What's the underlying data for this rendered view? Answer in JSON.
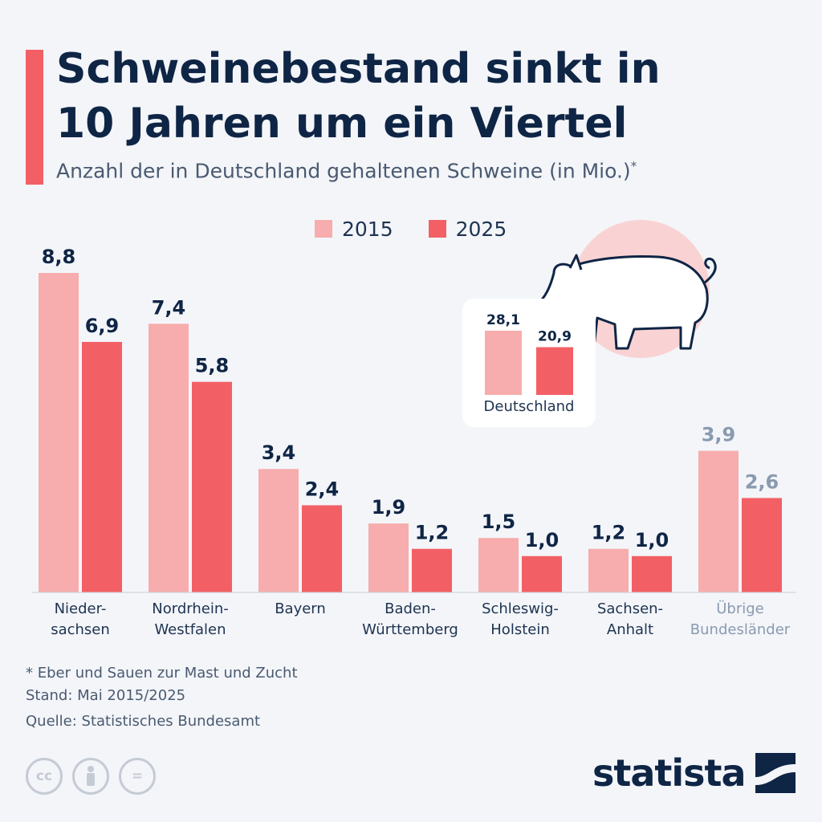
{
  "header": {
    "title_line1": "Schweinebestand sinkt in",
    "title_line2": "10 Jahren um ein Viertel",
    "subtitle": "Anzahl der in Deutschland gehaltenen Schweine (in Mio.)",
    "subtitle_marker": "*"
  },
  "colors": {
    "accent": "#f26065",
    "series_2015": "#f7adad",
    "series_2025": "#f26065",
    "value_text": "#0f2545",
    "muted_text": "#8a9ab0",
    "pig_circle": "#f9d3d3"
  },
  "legend": {
    "items": [
      {
        "label": "2015",
        "color": "#f7adad"
      },
      {
        "label": "2025",
        "color": "#f26065"
      }
    ]
  },
  "chart_data": {
    "type": "bar",
    "categories": [
      [
        "Nieder-",
        "sachsen"
      ],
      [
        "Nordrhein-",
        "Westfalen"
      ],
      [
        "Bayern"
      ],
      [
        "Baden-",
        "Württemberg"
      ],
      [
        "Schleswig-",
        "Holstein"
      ],
      [
        "Sachsen-",
        "Anhalt"
      ],
      [
        "Übrige",
        "Bundesländer"
      ]
    ],
    "series": [
      {
        "name": "2015",
        "values": [
          8.8,
          7.4,
          3.4,
          1.9,
          1.5,
          1.2,
          3.9
        ],
        "labels": [
          "8,8",
          "7,4",
          "3,4",
          "1,9",
          "1,5",
          "1,2",
          "3,9"
        ]
      },
      {
        "name": "2025",
        "values": [
          6.9,
          5.8,
          2.4,
          1.2,
          1.0,
          1.0,
          2.6
        ],
        "labels": [
          "6,9",
          "5,8",
          "2,4",
          "1,2",
          "1,0",
          "1,0",
          "2,6"
        ]
      }
    ],
    "muted_categories": [
      6
    ],
    "ylim": [
      0,
      8.8
    ],
    "grid": false,
    "legend_position": "top-center",
    "inset": {
      "category": "Deutschland",
      "values": [
        28.1,
        20.9
      ],
      "labels": [
        "28,1",
        "20,9"
      ]
    }
  },
  "footer": {
    "note": "* Eber und Sauen zur Mast und Zucht",
    "date": "Stand: Mai 2015/2025",
    "source": "Quelle: Statistisches Bundesamt",
    "brand": "statista",
    "license_icons": [
      "cc-icon",
      "by-icon",
      "nd-icon"
    ],
    "cc_label": "cc",
    "nd_label": "="
  }
}
